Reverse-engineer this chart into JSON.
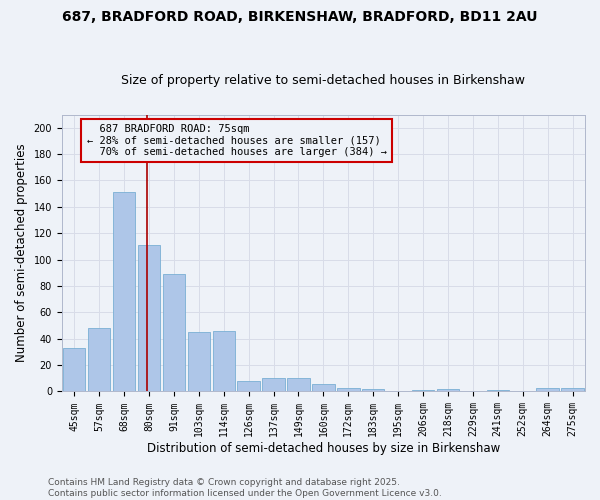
{
  "title1": "687, BRADFORD ROAD, BIRKENSHAW, BRADFORD, BD11 2AU",
  "title2": "Size of property relative to semi-detached houses in Birkenshaw",
  "xlabel": "Distribution of semi-detached houses by size in Birkenshaw",
  "ylabel": "Number of semi-detached properties",
  "categories": [
    "45sqm",
    "57sqm",
    "68sqm",
    "80sqm",
    "91sqm",
    "103sqm",
    "114sqm",
    "126sqm",
    "137sqm",
    "149sqm",
    "160sqm",
    "172sqm",
    "183sqm",
    "195sqm",
    "206sqm",
    "218sqm",
    "229sqm",
    "241sqm",
    "252sqm",
    "264sqm",
    "275sqm"
  ],
  "values": [
    33,
    48,
    151,
    111,
    89,
    45,
    46,
    8,
    10,
    10,
    6,
    3,
    2,
    0,
    1,
    2,
    0,
    1,
    0,
    3,
    3
  ],
  "bar_color": "#aec6e8",
  "bar_edge_color": "#7aafd4",
  "vline_x": 2.925,
  "subject_label": "687 BRADFORD ROAD: 75sqm",
  "pct_smaller": "28% of semi-detached houses are smaller (157)",
  "pct_larger": "70% of semi-detached houses are larger (384)",
  "annotation_box_color": "#cc0000",
  "vline_color": "#aa0000",
  "background_color": "#eef2f8",
  "grid_color": "#d8dce8",
  "ylim": [
    0,
    210
  ],
  "yticks": [
    0,
    20,
    40,
    60,
    80,
    100,
    120,
    140,
    160,
    180,
    200
  ],
  "footnote": "Contains HM Land Registry data © Crown copyright and database right 2025.\nContains public sector information licensed under the Open Government Licence v3.0.",
  "title_fontsize": 10,
  "subtitle_fontsize": 9,
  "axis_label_fontsize": 8.5,
  "tick_fontsize": 7,
  "annotation_fontsize": 7.5,
  "footnote_fontsize": 6.5
}
